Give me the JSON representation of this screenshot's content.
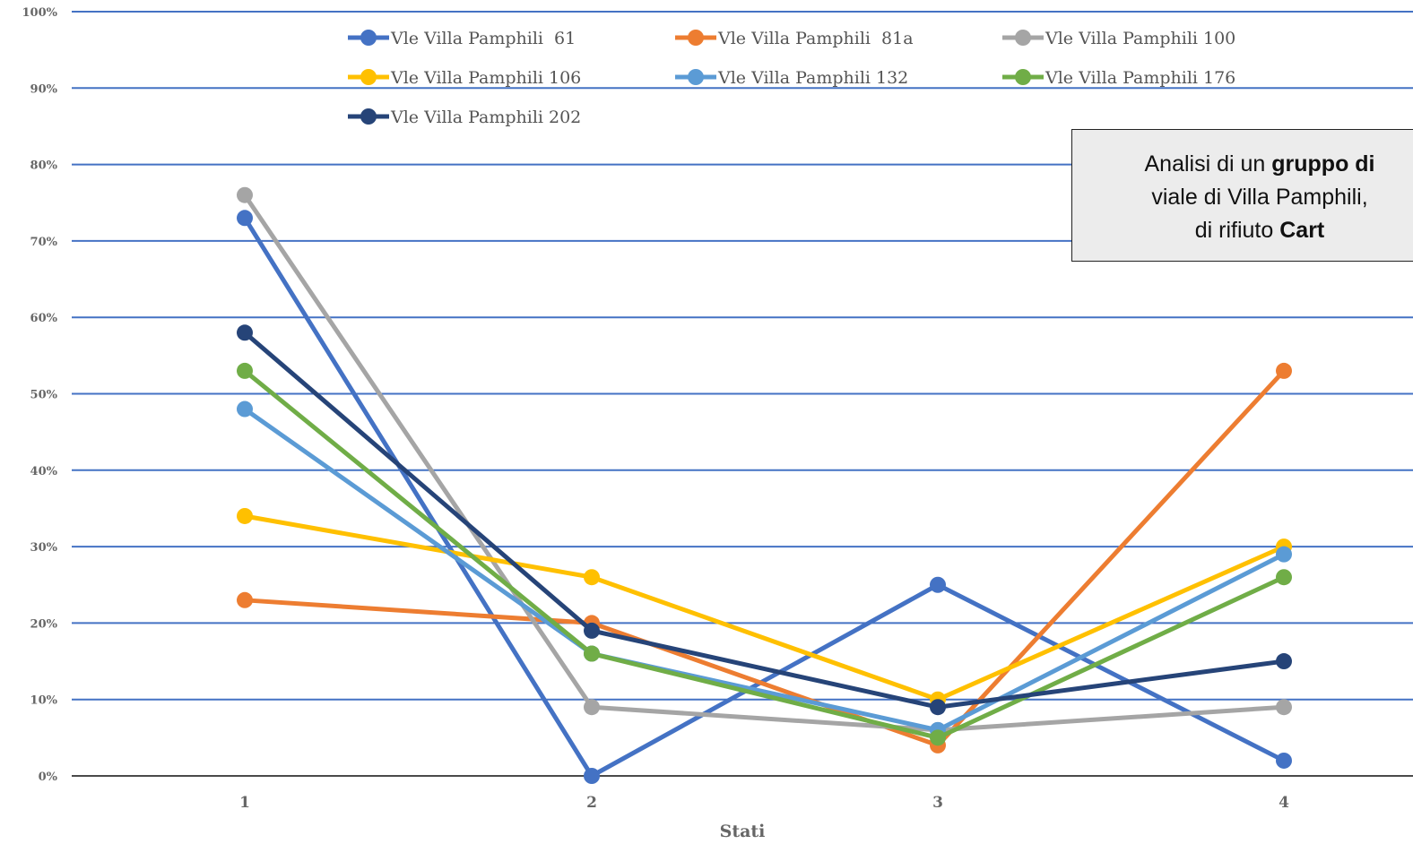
{
  "chart_data": {
    "type": "line",
    "x": [
      1,
      2,
      3,
      4
    ],
    "x_tick_labels": [
      "1",
      "2",
      "3",
      "4"
    ],
    "xlabel": "Stati",
    "ylim": [
      0,
      100
    ],
    "y_tick_labels": [
      "0%",
      "10%",
      "20%",
      "30%",
      "40%",
      "50%",
      "60%",
      "70%",
      "80%",
      "90%",
      "100%"
    ],
    "grid": true,
    "legend_position": "top",
    "series": [
      {
        "name": "Vle Villa Pamphili  61",
        "color": "#4472C4",
        "values": [
          73,
          0,
          25,
          2
        ]
      },
      {
        "name": "Vle Villa Pamphili  81a",
        "color": "#ED7D31",
        "values": [
          23,
          20,
          4,
          53
        ]
      },
      {
        "name": "Vle Villa Pamphili 100",
        "color": "#A5A5A5",
        "values": [
          76,
          9,
          6,
          9
        ]
      },
      {
        "name": "Vle Villa Pamphili 106",
        "color": "#FFC000",
        "values": [
          34,
          26,
          10,
          30
        ]
      },
      {
        "name": "Vle Villa Pamphili 132",
        "color": "#5B9BD5",
        "values": [
          48,
          16,
          6,
          29
        ]
      },
      {
        "name": "Vle Villa Pamphili 176",
        "color": "#70AD47",
        "values": [
          53,
          16,
          5,
          26
        ]
      },
      {
        "name": "Vle Villa Pamphili 202",
        "color": "#264478",
        "values": [
          58,
          19,
          9,
          15
        ]
      }
    ]
  },
  "annotation": {
    "line1_prefix": "Analisi di un ",
    "line1_bold": "gruppo di",
    "line2": "viale di Villa Pamphili,",
    "line3_prefix": "di rifiuto ",
    "line3_bold": "Cart"
  }
}
